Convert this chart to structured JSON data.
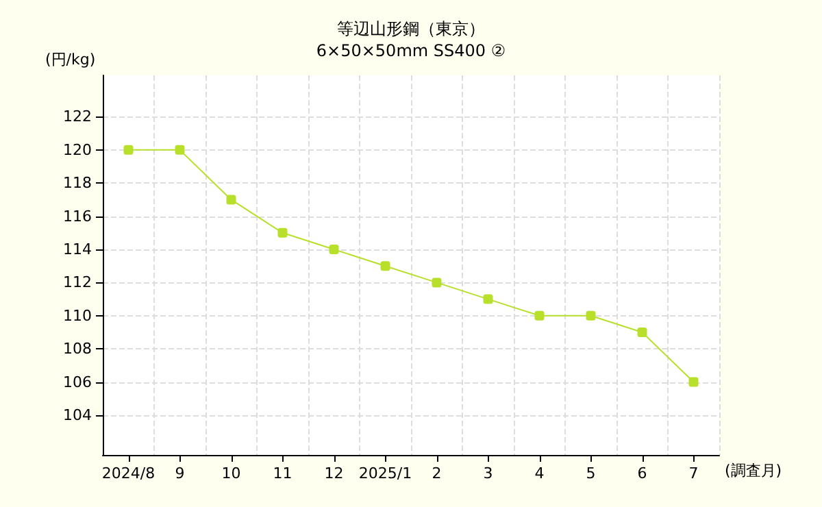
{
  "chart_data": {
    "type": "line",
    "title": "等辺山形鋼（東京）",
    "subtitle": "6×50×50mm SS400 ②",
    "xlabel": "(調査月)",
    "ylabel": "(円/kg)",
    "categories": [
      "2024/8",
      "9",
      "10",
      "11",
      "12",
      "2025/1",
      "2",
      "3",
      "4",
      "5",
      "6",
      "7"
    ],
    "series": [
      {
        "color": "#b8e02a",
        "values": [
          120,
          120,
          117,
          115,
          114,
          113,
          112,
          111,
          110,
          110,
          109,
          106
        ]
      }
    ],
    "ylim": [
      101.6,
      124.5
    ],
    "yticks": [
      104,
      106,
      108,
      110,
      112,
      114,
      116,
      118,
      120,
      122
    ],
    "grid": true,
    "marker": "square",
    "line_style": "solid"
  }
}
